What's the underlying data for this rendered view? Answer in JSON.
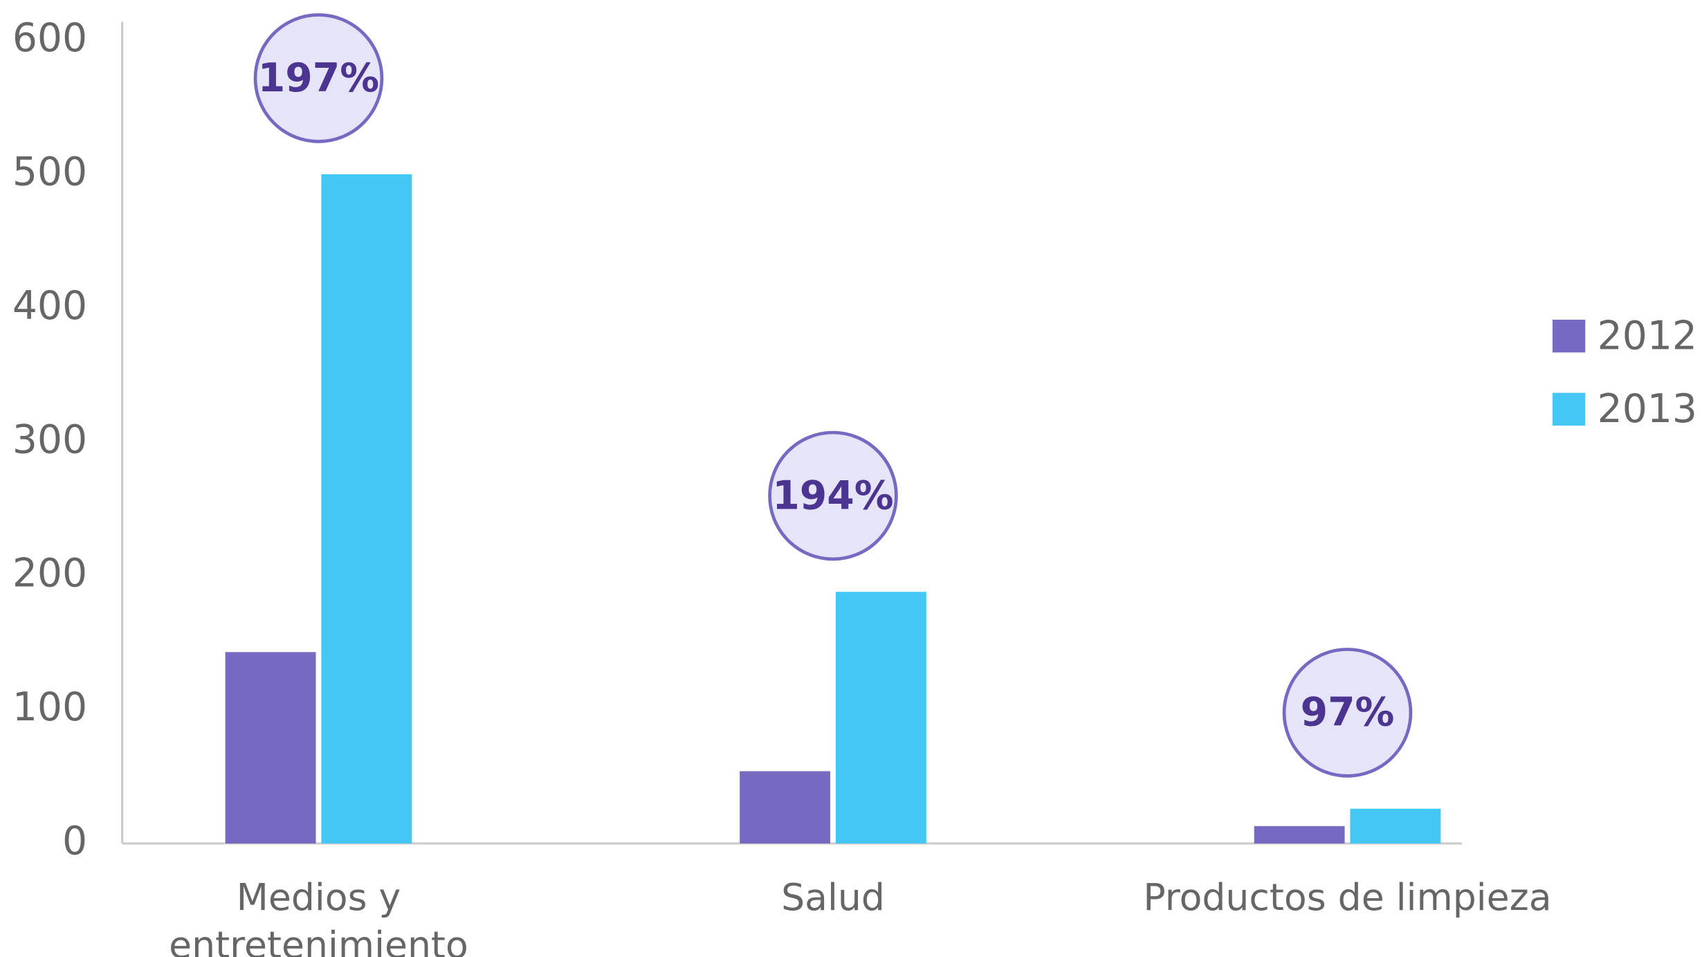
{
  "chart_data": {
    "type": "bar",
    "categories": [
      "Medios y entretenimiento",
      "Salud",
      "Productos de limpieza"
    ],
    "series": [
      {
        "name": "2012",
        "color": "#7569c1",
        "values": [
          143,
          54,
          13
        ]
      },
      {
        "name": "2013",
        "color": "#44c7f4",
        "values": [
          500,
          188,
          26
        ]
      }
    ],
    "annotations": [
      "197%",
      "194%",
      "97%"
    ],
    "ylim": [
      0,
      600
    ],
    "yticks": [
      0,
      100,
      200,
      300,
      400,
      500,
      600
    ],
    "grid": false,
    "legend": "right"
  }
}
